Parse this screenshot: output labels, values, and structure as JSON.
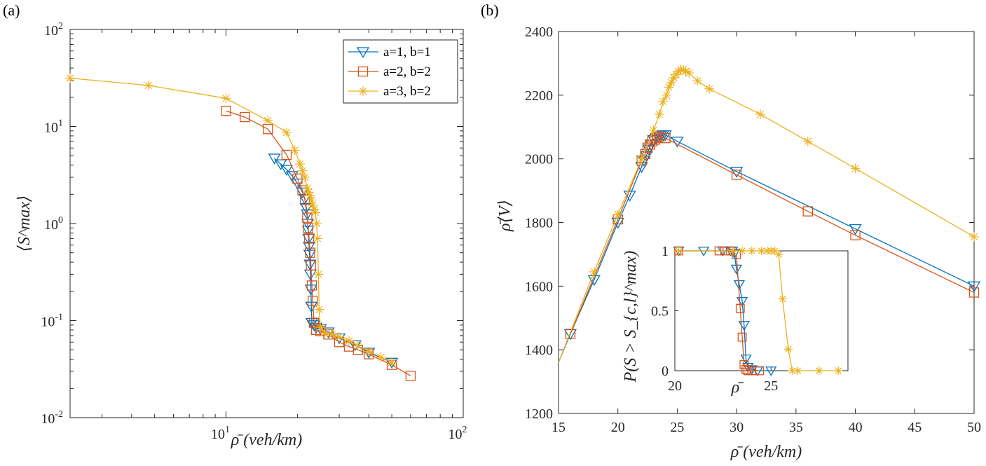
{
  "panels": [
    {
      "panel_label": "(a)",
      "chart_data": {
        "type": "line",
        "xscale": "log",
        "yscale": "log",
        "xlim": [
          2.2,
          100
        ],
        "ylim": [
          0.01,
          100
        ],
        "xticks": [
          {
            "value": 10,
            "label_base": "10",
            "label_exp": "1"
          },
          {
            "value": 100,
            "label_base": "10",
            "label_exp": "2"
          }
        ],
        "yticks": [
          {
            "value": 0.01,
            "label_base": "10",
            "label_exp": "-2"
          },
          {
            "value": 0.1,
            "label_base": "10",
            "label_exp": "-1"
          },
          {
            "value": 1,
            "label_base": "10",
            "label_exp": "0"
          },
          {
            "value": 10,
            "label_base": "10",
            "label_exp": "1"
          },
          {
            "value": 100,
            "label_base": "10",
            "label_exp": "2"
          }
        ],
        "xlabel": "ρ̄ (veh/km)",
        "ylabel": "⟨S^max⟩",
        "legend": {
          "position": "top-right",
          "entries": [
            "a=1, b=1",
            "a=2, b=2",
            "a=3, b=2"
          ]
        },
        "series": [
          {
            "name": "a=1, b=1",
            "color": "#0072BD",
            "marker": "triangle-down",
            "x": [
              16,
              17,
              18,
              19,
              20,
              21,
              21.5,
              21.8,
              22,
              22.1,
              22.2,
              22.3,
              22.4,
              22.5,
              22.6,
              22.7,
              22.8,
              22.9,
              23,
              23.5,
              24,
              25,
              27,
              30,
              35,
              40,
              50
            ],
            "y": [
              4.7,
              4.1,
              3.6,
              3.1,
              2.6,
              2.1,
              1.8,
              1.45,
              1.25,
              1.0,
              0.85,
              0.7,
              0.58,
              0.48,
              0.38,
              0.3,
              0.21,
              0.14,
              0.095,
              0.09,
              0.085,
              0.082,
              0.076,
              0.066,
              0.056,
              0.047,
              0.037
            ]
          },
          {
            "name": "a=2, b=2",
            "color": "#D95319",
            "marker": "square",
            "x": [
              10,
              12,
              15,
              18,
              20,
              21,
              21.5,
              22,
              22.2,
              22.4,
              22.6,
              22.8,
              23,
              23.2,
              23.5,
              24,
              25,
              27,
              30,
              33,
              36,
              40,
              50,
              60
            ],
            "y": [
              14.5,
              12.5,
              9.4,
              5.1,
              2.9,
              2.2,
              1.75,
              1.15,
              0.9,
              0.7,
              0.5,
              0.37,
              0.23,
              0.16,
              0.095,
              0.08,
              0.078,
              0.072,
              0.06,
              0.054,
              0.05,
              0.045,
              0.035,
              0.027
            ]
          },
          {
            "name": "a=3, b=2",
            "color": "#EDB120",
            "marker": "asterisk",
            "x": [
              2.2,
              4.7,
              10,
              15,
              18,
              19.5,
              20.5,
              21,
              21.5,
              22,
              22.3,
              22.6,
              22.9,
              23.2,
              23.5,
              23.8,
              24.1,
              24.3,
              24.5,
              24.7,
              25,
              26,
              28,
              30,
              33,
              36,
              40,
              45,
              50
            ],
            "y": [
              31.5,
              26.5,
              19.5,
              11.5,
              8.7,
              5.7,
              4.1,
              3.5,
              3.0,
              2.3,
              2.1,
              1.95,
              1.75,
              1.55,
              1.4,
              1.3,
              1.0,
              0.7,
              0.3,
              0.13,
              0.085,
              0.075,
              0.072,
              0.068,
              0.062,
              0.055,
              0.048,
              0.042,
              0.037
            ]
          }
        ]
      }
    },
    {
      "panel_label": "(b)",
      "chart_data": {
        "type": "line",
        "xlim": [
          15,
          50
        ],
        "ylim": [
          1200,
          2400
        ],
        "xticks": [
          15,
          20,
          25,
          30,
          35,
          40,
          45,
          50
        ],
        "yticks": [
          1200,
          1400,
          1600,
          1800,
          2000,
          2200,
          2400
        ],
        "xlabel": "ρ̄ (veh/km)",
        "ylabel": "ρ̄⟨V⟩",
        "series": [
          {
            "name": "a=1, b=1",
            "color": "#0072BD",
            "marker": "triangle-down",
            "x": [
              15,
              16,
              18,
              20,
              21,
              22,
              22.2,
              22.4,
              22.6,
              22.8,
              23,
              23.2,
              23.4,
              23.6,
              23.8,
              24,
              25,
              30,
              40,
              50
            ],
            "y": [
              1360,
              1450,
              1620,
              1800,
              1885,
              1975,
              1995,
              2010,
              2030,
              2045,
              2060,
              2065,
              2070,
              2072,
              2075,
              2075,
              2055,
              1960,
              1780,
              1600
            ]
          },
          {
            "name": "a=2, b=2",
            "color": "#D95319",
            "marker": "square",
            "x": [
              16,
              20,
              22,
              22.3,
              22.5,
              22.7,
              22.9,
              23.1,
              23.3,
              23.5,
              24,
              30,
              36,
              40,
              50
            ],
            "y": [
              1450,
              1810,
              1995,
              2015,
              2035,
              2045,
              2055,
              2060,
              2065,
              2070,
              2065,
              1950,
              1835,
              1760,
              1580
            ]
          },
          {
            "name": "a=3, b=2",
            "color": "#EDB120",
            "marker": "asterisk",
            "x": [
              15,
              18,
              20,
              22,
              23,
              23.5,
              23.8,
              24.1,
              24.3,
              24.5,
              24.7,
              24.9,
              25.1,
              25.3,
              25.5,
              25.7,
              26,
              26.7,
              27.7,
              32,
              36,
              40,
              50
            ],
            "y": [
              1360,
              1645,
              1825,
              2000,
              2090,
              2140,
              2180,
              2200,
              2225,
              2240,
              2255,
              2265,
              2275,
              2280,
              2280,
              2275,
              2270,
              2245,
              2220,
              2140,
              2055,
              1970,
              1755
            ]
          }
        ]
      },
      "inset": {
        "chart_data": {
          "type": "line",
          "xlim": [
            20,
            29
          ],
          "ylim": [
            0,
            1
          ],
          "xticks": [
            {
              "value": 20,
              "label": "20"
            },
            {
              "value": 25,
              "label": "25"
            }
          ],
          "yticks": [
            {
              "value": 0,
              "label": "0"
            },
            {
              "value": 0.5,
              "label": "0.5"
            },
            {
              "value": 1,
              "label": "1"
            }
          ],
          "xlabel": "ρ̄",
          "ylabel": "P(S > S_{c,l}^max)",
          "series": [
            {
              "name": "a=1, b=1",
              "color": "#0072BD",
              "marker": "triangle-down",
              "x": [
                20.2,
                21.5,
                22.5,
                22.9,
                23,
                23.1,
                23.2,
                23.35,
                23.5,
                23.6,
                23.7,
                23.8,
                24,
                24.3,
                25
              ],
              "y": [
                1,
                1,
                1,
                1,
                1,
                0.98,
                0.85,
                0.72,
                0.58,
                0.38,
                0.1,
                0.03,
                0.01,
                0,
                0
              ]
            },
            {
              "name": "a=2, b=2",
              "color": "#D95319",
              "marker": "square",
              "x": [
                20.2,
                22.3,
                22.6,
                22.9,
                23.2,
                23.4,
                23.5,
                23.6,
                23.7,
                23.8,
                24,
                24.4
              ],
              "y": [
                1,
                1,
                1,
                1,
                0.97,
                0.52,
                0.28,
                0.05,
                0.01,
                0,
                0,
                0
              ]
            },
            {
              "name": "a=3, b=2",
              "color": "#EDB120",
              "marker": "asterisk",
              "x": [
                20.2,
                23,
                23.5,
                24,
                24.5,
                24.8,
                25,
                25.2,
                25.4,
                25.6,
                25.9,
                26.1,
                26.4,
                27.5,
                28.5
              ],
              "y": [
                1,
                1,
                1,
                1,
                1,
                1,
                1,
                1,
                0.97,
                0.6,
                0.18,
                0,
                0,
                0,
                0
              ]
            }
          ]
        }
      }
    }
  ]
}
